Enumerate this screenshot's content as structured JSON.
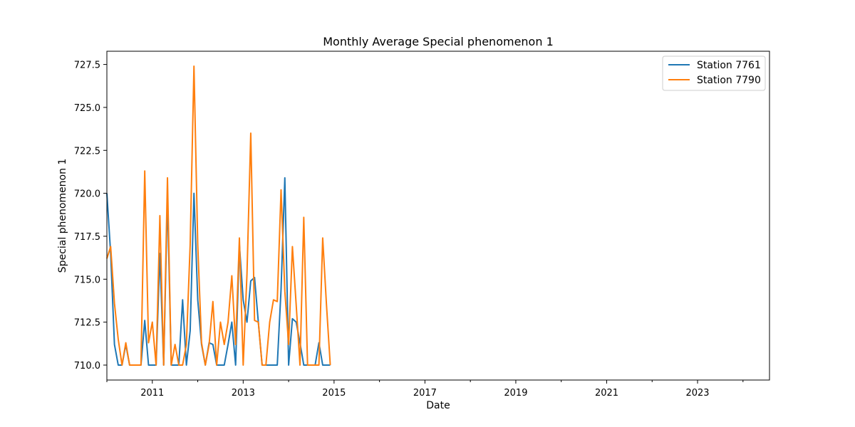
{
  "chart_data": {
    "type": "line",
    "title": "Monthly Average Special phenomenon 1",
    "xlabel": "Date",
    "ylabel": "Special phenomenon 1",
    "xlim": [
      "2010-01",
      "2024-08"
    ],
    "ylim": [
      709.13,
      728.27
    ],
    "x_ticks": [
      "2011",
      "2013",
      "2015",
      "2017",
      "2019",
      "2021",
      "2023"
    ],
    "y_ticks": [
      "710.0",
      "712.5",
      "715.0",
      "717.5",
      "720.0",
      "722.5",
      "725.0",
      "727.5"
    ],
    "grid": false,
    "legend_position": "top-right",
    "colors": {
      "station_7761": "#1f77b4",
      "station_7790": "#ff7f0e"
    },
    "x": [
      "2010-01",
      "2010-02",
      "2010-03",
      "2010-04",
      "2010-05",
      "2010-06",
      "2010-07",
      "2010-08",
      "2010-09",
      "2010-10",
      "2010-11",
      "2010-12",
      "2011-01",
      "2011-02",
      "2011-03",
      "2011-04",
      "2011-05",
      "2011-06",
      "2011-07",
      "2011-08",
      "2011-09",
      "2011-10",
      "2011-11",
      "2011-12",
      "2012-01",
      "2012-02",
      "2012-03",
      "2012-04",
      "2012-05",
      "2012-06",
      "2012-07",
      "2012-08",
      "2012-09",
      "2012-10",
      "2012-11",
      "2012-12",
      "2013-01",
      "2013-02",
      "2013-03",
      "2013-04",
      "2013-05",
      "2013-06",
      "2013-07",
      "2013-08",
      "2013-09",
      "2013-10",
      "2013-11",
      "2013-12",
      "2014-01",
      "2014-02",
      "2014-03",
      "2014-04",
      "2014-05",
      "2014-06",
      "2014-07",
      "2014-08",
      "2014-09",
      "2014-10",
      "2014-11",
      "2014-12"
    ],
    "series": [
      {
        "name": "Station 7761",
        "values": [
          720.0,
          716.5,
          711.2,
          710.0,
          710.0,
          711.2,
          710.0,
          710.0,
          710.0,
          710.0,
          712.6,
          710.0,
          710.0,
          710.0,
          716.5,
          710.0,
          719.8,
          710.0,
          710.0,
          710.0,
          713.8,
          710.0,
          712.0,
          720.0,
          713.8,
          711.2,
          710.0,
          711.3,
          711.2,
          710.0,
          710.0,
          710.0,
          711.2,
          712.5,
          710.0,
          717.0,
          713.8,
          712.5,
          714.9,
          715.1,
          712.5,
          710.0,
          710.0,
          710.0,
          710.0,
          710.0,
          714.4,
          720.9,
          710.0,
          712.7,
          712.5,
          711.3,
          710.0,
          710.0,
          710.0,
          710.0,
          711.3,
          710.0,
          710.0,
          710.0
        ]
      },
      {
        "name": "Station 7790",
        "values": [
          716.2,
          716.9,
          713.6,
          711.5,
          710.0,
          711.3,
          710.0,
          710.0,
          710.0,
          710.0,
          721.3,
          711.3,
          712.5,
          710.0,
          718.7,
          710.0,
          720.9,
          710.0,
          711.2,
          710.0,
          710.0,
          711.2,
          717.0,
          727.4,
          717.0,
          711.3,
          710.0,
          711.2,
          713.7,
          710.0,
          712.5,
          711.2,
          712.5,
          715.2,
          711.2,
          717.4,
          710.0,
          715.3,
          723.5,
          712.6,
          712.5,
          710.0,
          710.0,
          712.5,
          713.8,
          713.7,
          720.2,
          714.3,
          711.2,
          716.9,
          713.5,
          710.0,
          718.6,
          710.0,
          710.0,
          710.0,
          710.0,
          717.4,
          713.5,
          710.0
        ]
      }
    ]
  }
}
